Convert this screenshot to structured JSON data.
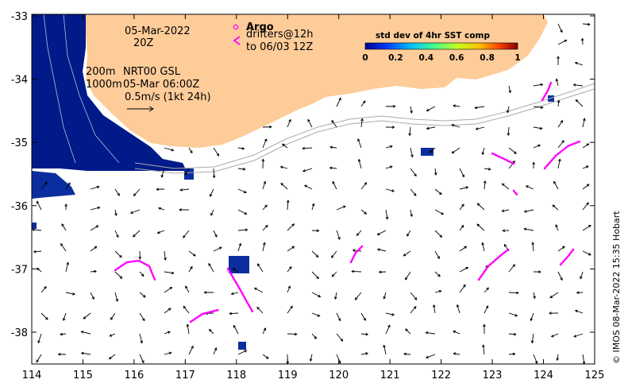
{
  "map": {
    "date_line1": "05-Mar-2022",
    "date_line2": "20Z",
    "argo_label": "Argo",
    "drifters_label": "drifters@12h",
    "drifters_to": "to 06/03 12Z",
    "contour_label_1": "200m",
    "contour_label_2": "1000m",
    "product_line1": "NRT00 GSL",
    "product_line2": "05-Mar 06:00Z",
    "scale_label": "0.5m/s (1kt 24h)",
    "colorbar_title": "std dev of 4hr SST comp",
    "colorbar_ticks": [
      "0",
      "0.2",
      "0.4",
      "0.6",
      "0.8",
      "1"
    ],
    "credit": "© IMOS 08-Mar-2022 15:35 Hobart",
    "x_ticks": [
      "114",
      "115",
      "116",
      "117",
      "118",
      "119",
      "120",
      "121",
      "122",
      "123",
      "124",
      "125"
    ],
    "y_ticks": [
      "-33",
      "-34",
      "-35",
      "-36",
      "-37",
      "-38"
    ],
    "colors": {
      "land": "#fdcc99",
      "sst_high_sd": "#001a8a",
      "drifter": "#ff00ff",
      "contour": "#aaaaaa",
      "arrow": "#000000"
    }
  }
}
